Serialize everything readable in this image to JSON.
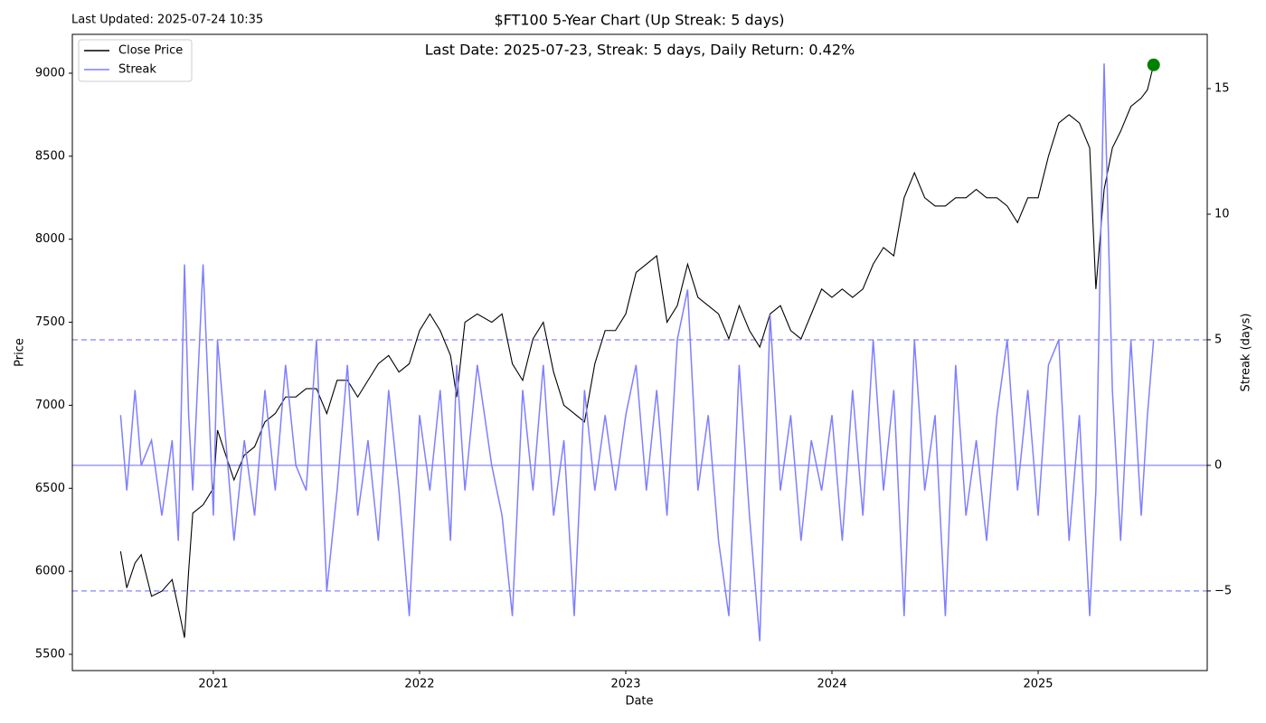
{
  "chart_data": {
    "type": "line",
    "title": "$FT100 5-Year Chart (Up Streak: 5 days)",
    "subtitle": "Last Date: 2025-07-23, Streak: 5 days, Daily Return: 0.42%",
    "annotation": "Last Updated: 2025-07-24 10:35",
    "x_label": "Date",
    "y_label": "Price",
    "y2_label": "Streak (days)",
    "x": [
      2020.55,
      2020.58,
      2020.62,
      2020.65,
      2020.7,
      2020.75,
      2020.8,
      2020.83,
      2020.86,
      2020.88,
      2020.9,
      2020.95,
      2021.0,
      2021.02,
      2021.1,
      2021.15,
      2021.2,
      2021.25,
      2021.3,
      2021.35,
      2021.4,
      2021.45,
      2021.5,
      2021.55,
      2021.6,
      2021.65,
      2021.7,
      2021.75,
      2021.8,
      2021.85,
      2021.9,
      2021.95,
      2022.0,
      2022.05,
      2022.1,
      2022.15,
      2022.18,
      2022.22,
      2022.28,
      2022.35,
      2022.4,
      2022.45,
      2022.5,
      2022.55,
      2022.6,
      2022.65,
      2022.7,
      2022.75,
      2022.8,
      2022.85,
      2022.9,
      2022.95,
      2023.0,
      2023.05,
      2023.1,
      2023.15,
      2023.2,
      2023.25,
      2023.3,
      2023.35,
      2023.4,
      2023.45,
      2023.5,
      2023.55,
      2023.6,
      2023.65,
      2023.7,
      2023.75,
      2023.8,
      2023.85,
      2023.9,
      2023.95,
      2024.0,
      2024.05,
      2024.1,
      2024.15,
      2024.2,
      2024.25,
      2024.3,
      2024.35,
      2024.4,
      2024.45,
      2024.5,
      2024.55,
      2024.6,
      2024.65,
      2024.7,
      2024.75,
      2024.8,
      2024.85,
      2024.9,
      2024.95,
      2025.0,
      2025.05,
      2025.1,
      2025.15,
      2025.2,
      2025.25,
      2025.28,
      2025.32,
      2025.36,
      2025.4,
      2025.45,
      2025.5,
      2025.53,
      2025.56
    ],
    "series": [
      {
        "name": "Close Price",
        "color": "#000000",
        "values": [
          6120,
          5900,
          6050,
          6100,
          5850,
          5880,
          5950,
          5780,
          5600,
          6000,
          6350,
          6400,
          6500,
          6850,
          6550,
          6700,
          6750,
          6900,
          6950,
          7050,
          7050,
          7100,
          7100,
          6950,
          7150,
          7150,
          7050,
          7150,
          7250,
          7300,
          7200,
          7250,
          7450,
          7550,
          7450,
          7300,
          7050,
          7500,
          7550,
          7500,
          7550,
          7250,
          7150,
          7400,
          7500,
          7200,
          7000,
          6950,
          6900,
          7250,
          7450,
          7450,
          7550,
          7800,
          7850,
          7900,
          7500,
          7600,
          7850,
          7650,
          7600,
          7550,
          7400,
          7600,
          7450,
          7350,
          7550,
          7600,
          7450,
          7400,
          7550,
          7700,
          7650,
          7700,
          7650,
          7700,
          7850,
          7950,
          7900,
          8250,
          8400,
          8250,
          8200,
          8200,
          8250,
          8250,
          8300,
          8250,
          8250,
          8200,
          8100,
          8250,
          8250,
          8500,
          8700,
          8750,
          8700,
          8550,
          7700,
          8300,
          8550,
          8650,
          8800,
          8850,
          8900,
          9050
        ]
      },
      {
        "name": "Streak",
        "color": "#7f7fff",
        "axis": "y2",
        "values": [
          2,
          -1,
          3,
          0,
          1,
          -2,
          1,
          -3,
          8,
          2,
          -1,
          8,
          -2,
          5,
          -3,
          1,
          -2,
          3,
          -1,
          4,
          0,
          -1,
          5,
          -5,
          -1,
          4,
          -2,
          1,
          -3,
          3,
          -1,
          -6,
          2,
          -1,
          3,
          -3,
          4,
          -1,
          4,
          0,
          -2,
          -6,
          3,
          -1,
          4,
          -2,
          1,
          -6,
          3,
          -1,
          2,
          -1,
          2,
          4,
          -1,
          3,
          -2,
          5,
          7,
          -1,
          2,
          -3,
          -6,
          4,
          -2,
          -7,
          6,
          -1,
          2,
          -3,
          1,
          -1,
          2,
          -3,
          3,
          -2,
          5,
          -1,
          3,
          -6,
          5,
          -1,
          2,
          -6,
          4,
          -2,
          1,
          -3,
          2,
          5,
          -1,
          3,
          -2,
          4,
          5,
          -3,
          2,
          -6,
          -1,
          16,
          3,
          -3,
          5,
          -2,
          2,
          5
        ]
      }
    ],
    "last_marker_color": "#008000",
    "y2_hlines": [
      {
        "value": 5,
        "dashed": true
      },
      {
        "value": -5,
        "dashed": true
      },
      {
        "value": 0,
        "dashed": false
      }
    ],
    "xlim": [
      2020.316,
      2025.82
    ],
    "xticks": [
      2021,
      2022,
      2023,
      2024,
      2025
    ],
    "ylim": [
      5402,
      9234
    ],
    "yticks": [
      5500,
      6000,
      6500,
      7000,
      7500,
      8000,
      8500,
      9000
    ],
    "y2lim": [
      -8.17,
      17.16
    ],
    "y2ticks": [
      {
        "value": -5,
        "label": "−5"
      },
      0,
      5,
      10,
      15
    ],
    "y2_color": "#0000ff",
    "legend": "upper left",
    "grid": false
  }
}
